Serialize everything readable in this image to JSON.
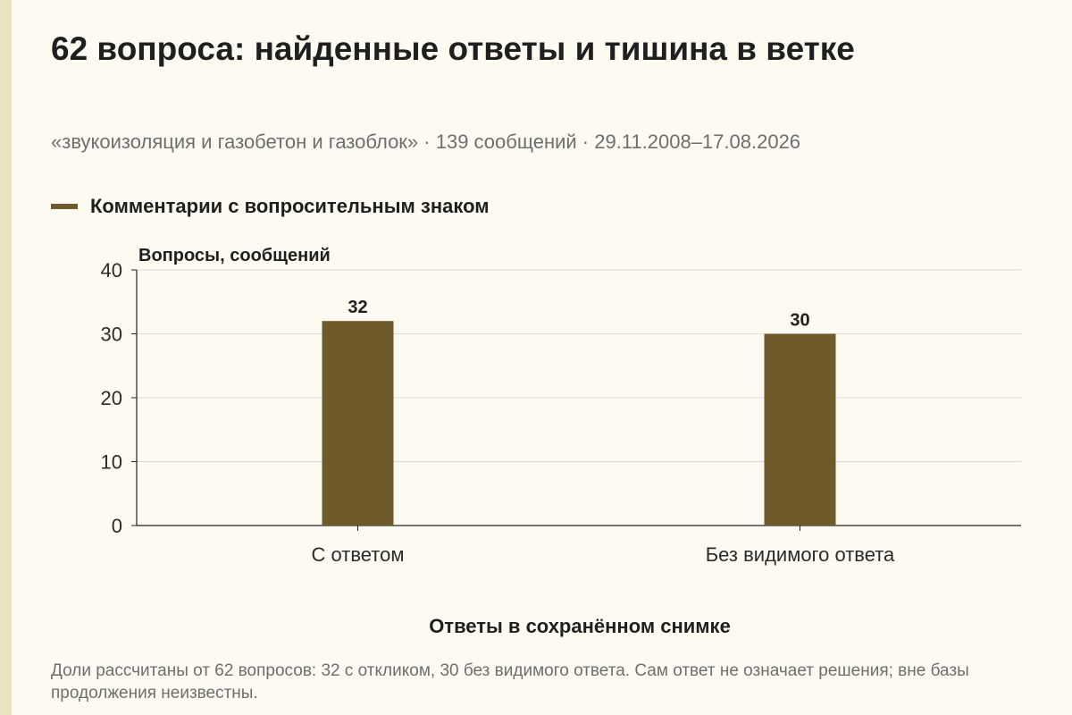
{
  "title": "62 вопроса: найденные ответы и тишина в ветке",
  "subtitle": "«звукоизоляция и газобетон и газоблок» · 139 сообщений · 29.11.2008–17.08.2026",
  "legend_label": "Комментарии с вопросительным знаком",
  "footnote": "Доли рассчитаны от 62 вопросов: 32 с откликом, 30 без видимого ответа. Сам ответ не означает решения; вне базы продолжения неизвестны.",
  "colors": {
    "bar": "#6e5a2a",
    "background": "#fdfbf1",
    "grid": "#dcdcdc",
    "axis": "#222222"
  },
  "chart_data": {
    "type": "bar",
    "categories": [
      "С ответом",
      "Без видимого ответа"
    ],
    "values": [
      32,
      30
    ],
    "data_labels": [
      "32",
      "30"
    ],
    "ylabel": "Вопросы, сообщений",
    "xlabel": "Ответы в сохранённом снимке",
    "ylim": [
      0,
      40
    ],
    "yticks": [
      0,
      10,
      20,
      30,
      40
    ],
    "grid": true,
    "legend": "top-left"
  }
}
